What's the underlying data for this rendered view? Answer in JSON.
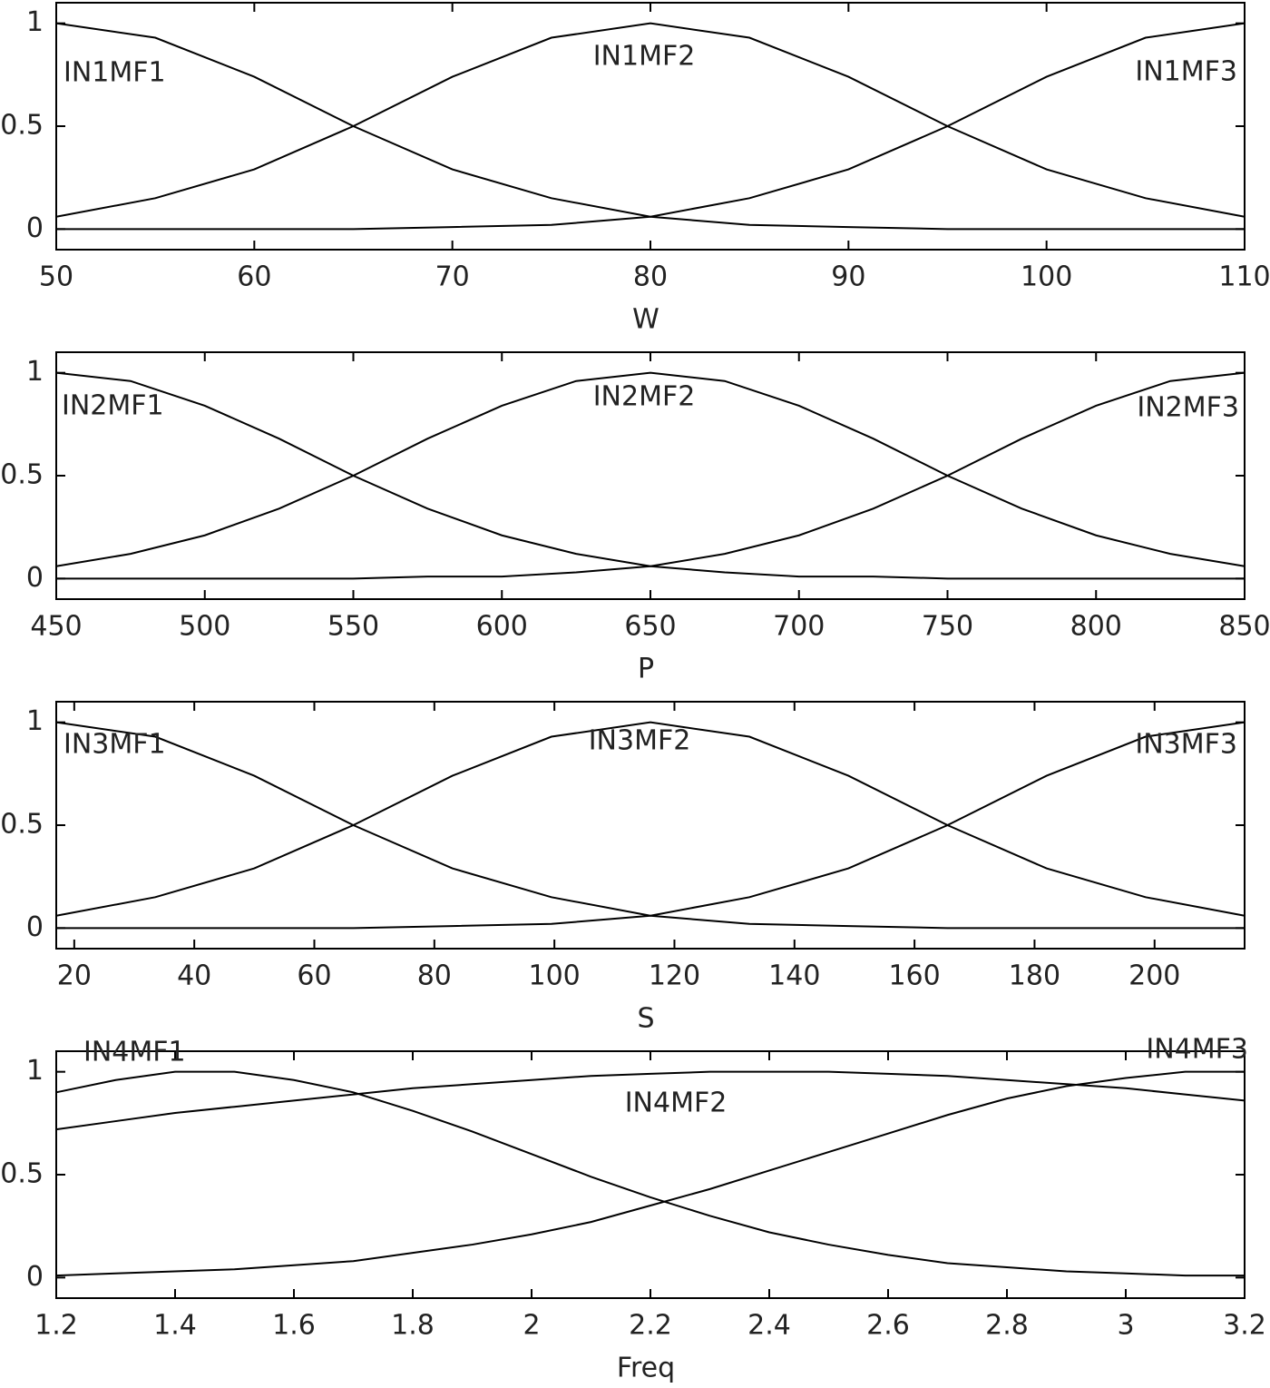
{
  "chart_data": [
    {
      "type": "line",
      "xlabel": "W",
      "xlim": [
        50,
        110
      ],
      "xticks": [
        50,
        60,
        70,
        80,
        90,
        100,
        110
      ],
      "ylim": [
        -0.1,
        1.1
      ],
      "yticks": [
        0,
        0.5,
        1
      ],
      "x": [
        50,
        55,
        60,
        65,
        70,
        75,
        80,
        85,
        90,
        95,
        100,
        105,
        110
      ],
      "series": [
        {
          "name": "IN1MF1",
          "color": "#000000",
          "values": [
            1,
            0.93,
            0.74,
            0.5,
            0.29,
            0.15,
            0.06,
            0.02,
            0.01,
            0,
            0,
            0,
            0
          ]
        },
        {
          "name": "IN1MF2",
          "color": "#000000",
          "values": [
            0.06,
            0.15,
            0.29,
            0.5,
            0.74,
            0.93,
            1,
            0.93,
            0.74,
            0.5,
            0.29,
            0.15,
            0.06
          ]
        },
        {
          "name": "IN1MF3",
          "color": "#000000",
          "values": [
            0,
            0,
            0,
            0,
            0.01,
            0.02,
            0.06,
            0.15,
            0.29,
            0.5,
            0.74,
            0.93,
            1
          ]
        }
      ]
    },
    {
      "type": "line",
      "xlabel": "P",
      "xlim": [
        450,
        850
      ],
      "xticks": [
        450,
        500,
        550,
        600,
        650,
        700,
        750,
        800,
        850
      ],
      "ylim": [
        -0.1,
        1.1
      ],
      "yticks": [
        0,
        0.5,
        1
      ],
      "x": [
        450,
        475,
        500,
        525,
        550,
        575,
        600,
        625,
        650,
        675,
        700,
        725,
        750,
        775,
        800,
        825,
        850
      ],
      "series": [
        {
          "name": "IN2MF1",
          "color": "#000000",
          "values": [
            1,
            0.96,
            0.84,
            0.68,
            0.5,
            0.34,
            0.21,
            0.12,
            0.06,
            0.03,
            0.01,
            0.01,
            0,
            0,
            0,
            0,
            0
          ]
        },
        {
          "name": "IN2MF2",
          "color": "#000000",
          "values": [
            0.06,
            0.12,
            0.21,
            0.34,
            0.5,
            0.68,
            0.84,
            0.96,
            1,
            0.96,
            0.84,
            0.68,
            0.5,
            0.34,
            0.21,
            0.12,
            0.06
          ]
        },
        {
          "name": "IN2MF3",
          "color": "#000000",
          "values": [
            0,
            0,
            0,
            0,
            0,
            0.01,
            0.01,
            0.03,
            0.06,
            0.12,
            0.21,
            0.34,
            0.5,
            0.68,
            0.84,
            0.96,
            1
          ]
        }
      ]
    },
    {
      "type": "line",
      "xlabel": "S",
      "xlim": [
        17,
        215
      ],
      "xticks": [
        20,
        40,
        60,
        80,
        100,
        120,
        140,
        160,
        180,
        200
      ],
      "ylim": [
        -0.1,
        1.1
      ],
      "yticks": [
        0,
        0.5,
        1
      ],
      "x": [
        17,
        33.5,
        50,
        66.5,
        83,
        99.5,
        116,
        132.5,
        149,
        165.5,
        182,
        198.5,
        215
      ],
      "series": [
        {
          "name": "IN3MF1",
          "color": "#000000",
          "values": [
            1,
            0.93,
            0.74,
            0.5,
            0.29,
            0.15,
            0.06,
            0.02,
            0.01,
            0,
            0,
            0,
            0
          ]
        },
        {
          "name": "IN3MF2",
          "color": "#000000",
          "values": [
            0.06,
            0.15,
            0.29,
            0.5,
            0.74,
            0.93,
            1,
            0.93,
            0.74,
            0.5,
            0.29,
            0.15,
            0.06
          ]
        },
        {
          "name": "IN3MF3",
          "color": "#000000",
          "values": [
            0,
            0,
            0,
            0,
            0.01,
            0.02,
            0.06,
            0.15,
            0.29,
            0.5,
            0.74,
            0.93,
            1
          ]
        }
      ]
    },
    {
      "type": "line",
      "xlabel": "Freq",
      "xlim": [
        1.2,
        3.2
      ],
      "xticks": [
        1.2,
        1.4,
        1.6,
        1.8,
        2,
        2.2,
        2.4,
        2.6,
        2.8,
        3,
        3.2
      ],
      "ylim": [
        -0.1,
        1.1
      ],
      "yticks": [
        0,
        0.5,
        1
      ],
      "x": [
        1.2,
        1.3,
        1.4,
        1.5,
        1.6,
        1.7,
        1.8,
        1.9,
        2.0,
        2.1,
        2.2,
        2.3,
        2.4,
        2.5,
        2.6,
        2.7,
        2.8,
        2.9,
        3.0,
        3.1,
        3.2
      ],
      "series": [
        {
          "name": "IN4MF1",
          "color": "#000000",
          "values": [
            0.9,
            0.96,
            1,
            1,
            0.96,
            0.9,
            0.81,
            0.71,
            0.6,
            0.49,
            0.39,
            0.3,
            0.22,
            0.16,
            0.11,
            0.07,
            0.05,
            0.03,
            0.02,
            0.01,
            0.01
          ]
        },
        {
          "name": "IN4MF2",
          "color": "#000000",
          "values": [
            0.72,
            0.76,
            0.8,
            0.83,
            0.86,
            0.89,
            0.92,
            0.94,
            0.96,
            0.98,
            0.99,
            1,
            1,
            1,
            0.99,
            0.98,
            0.96,
            0.94,
            0.92,
            0.89,
            0.86
          ]
        },
        {
          "name": "IN4MF3",
          "color": "#000000",
          "values": [
            0.01,
            0.02,
            0.03,
            0.04,
            0.06,
            0.08,
            0.12,
            0.16,
            0.21,
            0.27,
            0.35,
            0.43,
            0.52,
            0.61,
            0.7,
            0.79,
            0.87,
            0.93,
            0.97,
            1,
            1
          ]
        }
      ]
    }
  ]
}
